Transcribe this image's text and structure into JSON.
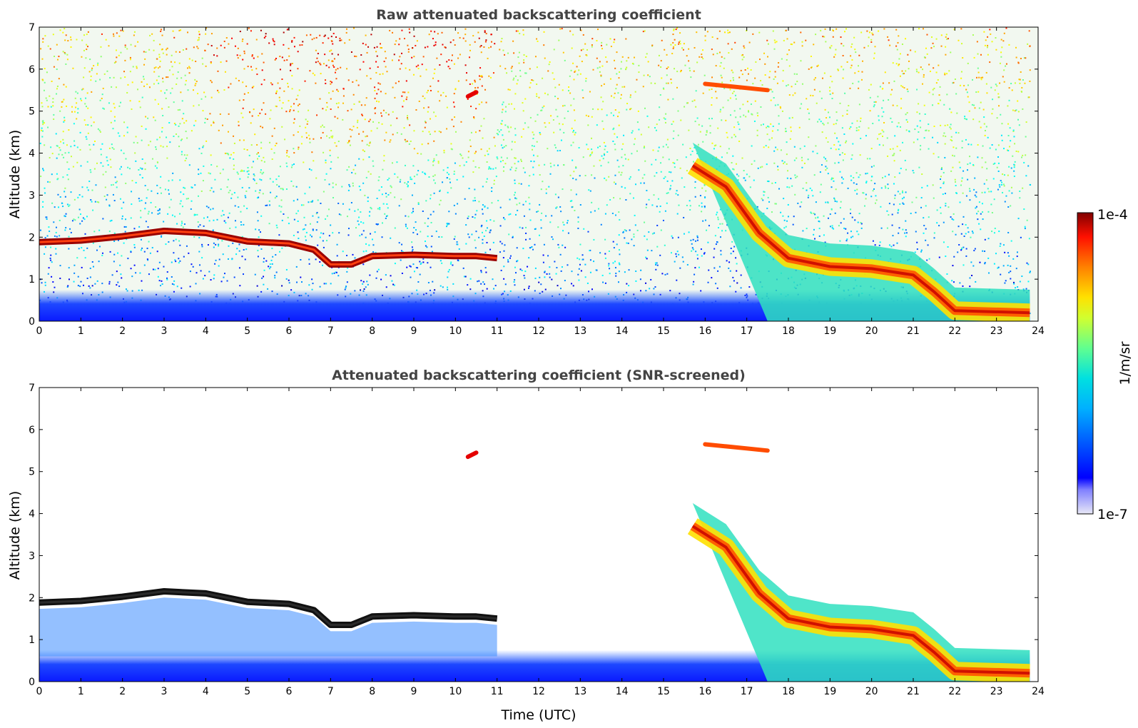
{
  "chart_data": [
    {
      "type": "heatmap",
      "title": "Raw attenuated backscattering coefficient",
      "xlabel": "",
      "ylabel": "Altitude (km)",
      "xlim": [
        0,
        24
      ],
      "ylim": [
        0,
        7
      ],
      "xticks": [
        "0",
        "1",
        "2",
        "3",
        "4",
        "5",
        "6",
        "7",
        "8",
        "9",
        "10",
        "11",
        "12",
        "13",
        "14",
        "15",
        "16",
        "17",
        "18",
        "19",
        "20",
        "21",
        "22",
        "23",
        "24"
      ],
      "yticks": [
        "0",
        "1",
        "2",
        "3",
        "4",
        "5",
        "6",
        "7"
      ],
      "features": [
        {
          "kind": "boundary-layer-top",
          "points": [
            [
              0,
              1.88
            ],
            [
              1,
              1.92
            ],
            [
              2,
              2.02
            ],
            [
              3,
              2.15
            ],
            [
              4,
              2.1
            ],
            [
              5,
              1.9
            ],
            [
              6,
              1.85
            ],
            [
              6.6,
              1.7
            ],
            [
              7,
              1.35
            ],
            [
              7.5,
              1.35
            ],
            [
              8,
              1.55
            ],
            [
              9,
              1.58
            ],
            [
              10,
              1.55
            ],
            [
              10.5,
              1.55
            ],
            [
              11,
              1.5
            ]
          ],
          "level": 1.0
        },
        {
          "kind": "cloud-layer",
          "points": [
            [
              15.7,
              3.7
            ],
            [
              16.5,
              3.2
            ],
            [
              17.3,
              2.1
            ],
            [
              18,
              1.5
            ],
            [
              19,
              1.3
            ],
            [
              20,
              1.25
            ],
            [
              21,
              1.1
            ],
            [
              21.5,
              0.7
            ],
            [
              22,
              0.25
            ],
            [
              23.8,
              0.2
            ]
          ],
          "level": 0.85
        },
        {
          "kind": "elevated-layer",
          "points": [
            [
              10.3,
              5.35
            ],
            [
              10.5,
              5.45
            ]
          ],
          "level": 0.9
        },
        {
          "kind": "elevated-layer",
          "points": [
            [
              16,
              5.65
            ],
            [
              16.5,
              5.6
            ],
            [
              17,
              5.55
            ],
            [
              17.5,
              5.5
            ]
          ],
          "level": 0.8
        }
      ]
    },
    {
      "type": "heatmap",
      "title": "Attenuated backscattering coefficient (SNR-screened)",
      "xlabel": "Time (UTC)",
      "ylabel": "Altitude (km)",
      "xlim": [
        0,
        24
      ],
      "ylim": [
        0,
        7
      ],
      "xticks": [
        "0",
        "1",
        "2",
        "3",
        "4",
        "5",
        "6",
        "7",
        "8",
        "9",
        "10",
        "11",
        "12",
        "13",
        "14",
        "15",
        "16",
        "17",
        "18",
        "19",
        "20",
        "21",
        "22",
        "23",
        "24"
      ],
      "yticks": [
        "0",
        "1",
        "2",
        "3",
        "4",
        "5",
        "6",
        "7"
      ]
    }
  ],
  "colorbar": {
    "label": "1/m/sr",
    "max_label": "1e-4",
    "min_label": "1e-7",
    "scale": "log",
    "range": [
      1e-07,
      0.0001
    ],
    "colormap": "jet"
  }
}
